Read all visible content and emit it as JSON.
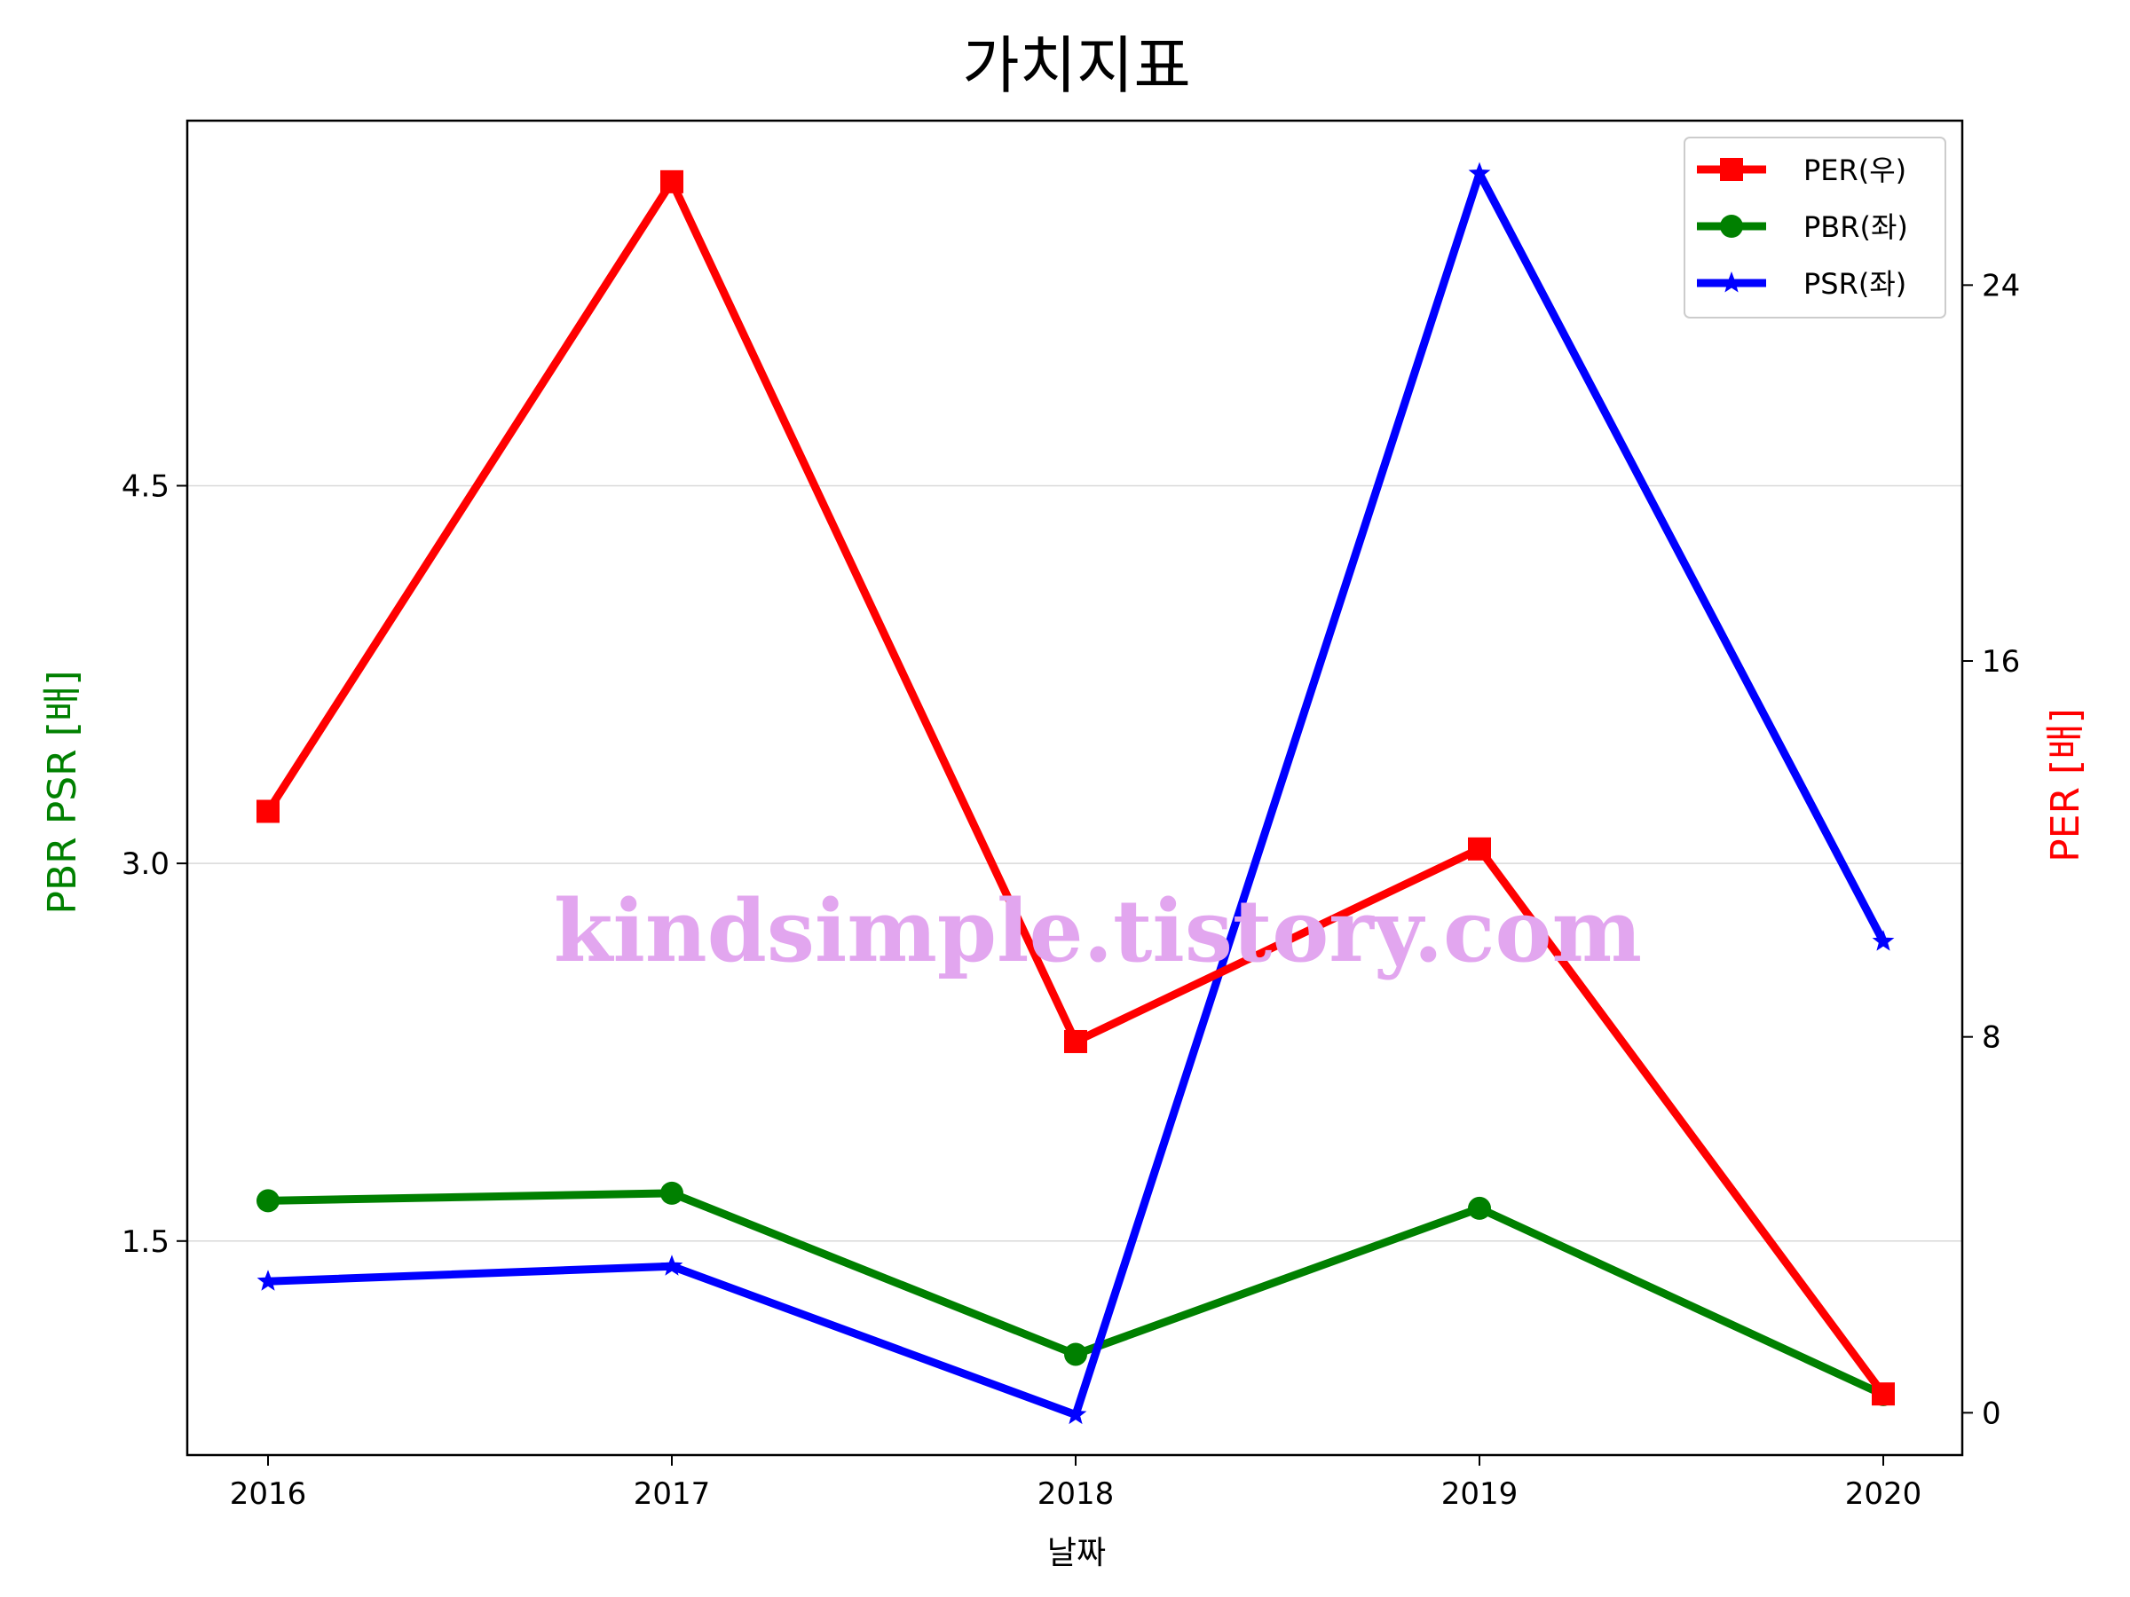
{
  "title": "가치지표",
  "watermark": "kindsimple.tistory.com",
  "chart_data": {
    "type": "line",
    "title": "가치지표",
    "xlabel": "날짜",
    "ylabel_left": "PBR PSR [배]",
    "ylabel_right": "PER [배]",
    "categories": [
      "2016",
      "2017",
      "2018",
      "2019",
      "2020"
    ],
    "left_axis": {
      "ylim": [
        0.65,
        5.95
      ],
      "ticks": [
        1.5,
        3.0,
        4.5
      ],
      "tick_labels": [
        "1.5",
        "3.0",
        "4.5"
      ]
    },
    "right_axis": {
      "ylim": [
        -0.9,
        27.5
      ],
      "ticks": [
        0,
        8,
        16,
        24
      ],
      "tick_labels": [
        "0",
        "8",
        "16",
        "24"
      ]
    },
    "grid": "horizontal at left-axis ticks",
    "legend_position": "top-right",
    "series": [
      {
        "name": "PER(우)",
        "axis": "right",
        "color": "#ff0000",
        "marker": "square",
        "values": [
          12.8,
          26.2,
          7.9,
          12.0,
          0.4
        ]
      },
      {
        "name": "PBR(좌)",
        "axis": "left",
        "color": "#008000",
        "marker": "circle",
        "values": [
          1.66,
          1.69,
          1.05,
          1.63,
          0.89
        ]
      },
      {
        "name": "PSR(좌)",
        "axis": "left",
        "color": "#0000ff",
        "marker": "star",
        "values": [
          1.34,
          1.4,
          0.81,
          5.74,
          2.69
        ]
      }
    ]
  }
}
